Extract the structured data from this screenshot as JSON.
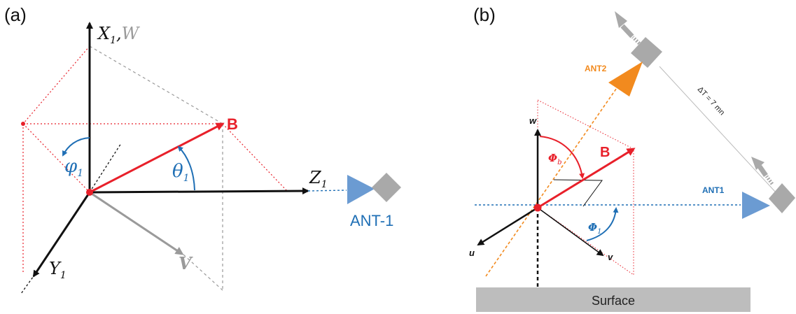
{
  "panel_a": {
    "label": "(a)",
    "axes": {
      "x": {
        "main": "X",
        "sub": "1",
        "sep": ",",
        "alt": "W"
      },
      "y": {
        "main": "Y",
        "sub": "1"
      },
      "z": {
        "main": "Z",
        "sub": "1"
      },
      "v": "V"
    },
    "vector": "B",
    "phi": {
      "main": "φ",
      "sub": "1"
    },
    "theta": {
      "main": "θ",
      "sub": "1"
    },
    "antenna": "ANT-1"
  },
  "panel_b": {
    "label": "(b)",
    "axes": {
      "w": "w",
      "u": "u",
      "v": "v"
    },
    "vector": "B",
    "phi_b": {
      "main": "Φ",
      "sub": "b"
    },
    "phi_1": {
      "main": "Φ",
      "sub": "1"
    },
    "ant2": "ANT2",
    "ant1": "ANT1",
    "delta_t": "ΔT = 7 mn",
    "surface": "Surface"
  },
  "colors": {
    "black": "#111111",
    "red": "#e8202a",
    "blue": "#1f6fb5",
    "gray": "#9a9a9a",
    "orange": "#f28a1e",
    "antenna_blue": "#6b9bd2",
    "antenna_gray": "#a9a9a9",
    "surface": "#bdbdbd"
  }
}
